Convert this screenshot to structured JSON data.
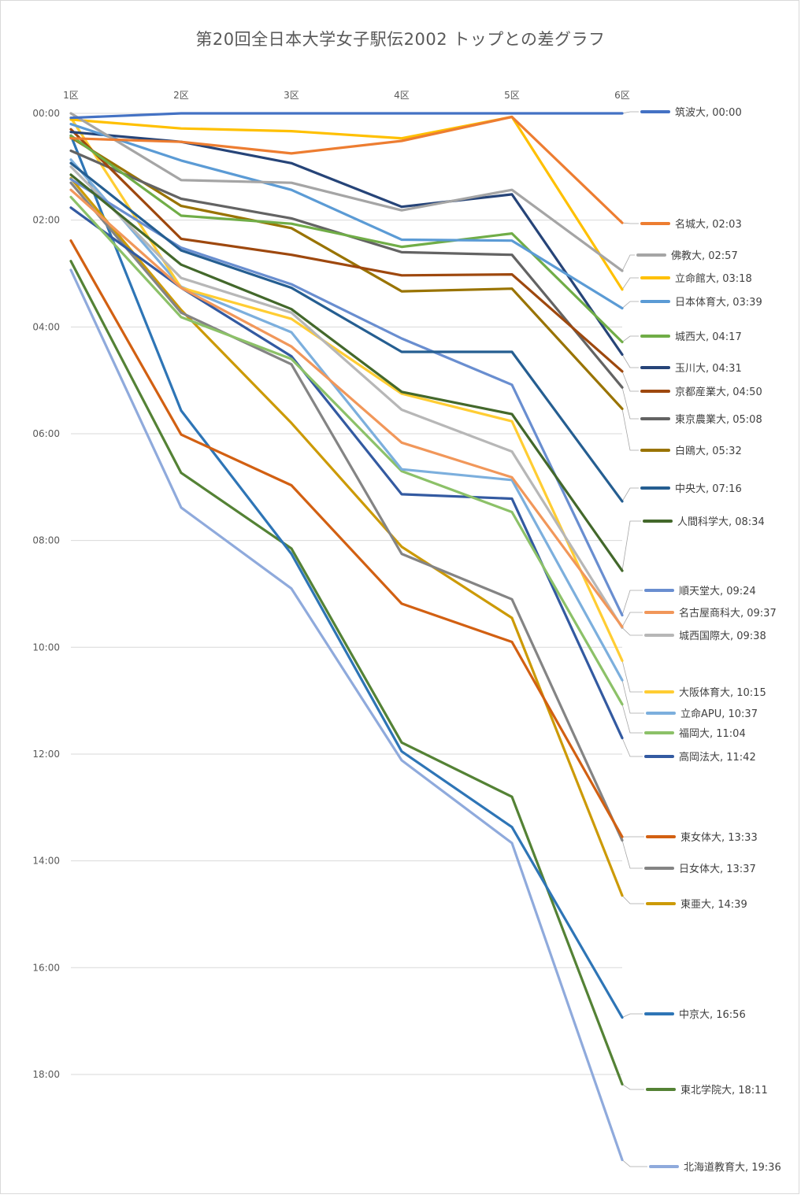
{
  "chart_data": {
    "type": "line",
    "title": "第20回全日本大学女子駅伝2002 トップとの差グラフ",
    "xlabel": "",
    "ylabel": "",
    "categories": [
      "1区",
      "2区",
      "3区",
      "4区",
      "5区",
      "6区"
    ],
    "y_axis": {
      "unit": "seconds behind leader",
      "inverted": true,
      "range_seconds": [
        0,
        1200
      ],
      "tick_labels": [
        "00:00",
        "02:00",
        "04:00",
        "06:00",
        "08:00",
        "10:00",
        "12:00",
        "14:00",
        "16:00",
        "18:00"
      ],
      "tick_values_seconds": [
        0,
        120,
        240,
        360,
        480,
        600,
        720,
        840,
        960,
        1080
      ]
    },
    "grid": true,
    "legend_position": "right, labels at line ends",
    "series": [
      {
        "name": "筑波大",
        "label": "筑波大, 00:00",
        "color": "#4472C4",
        "values": [
          5,
          0,
          0,
          0,
          0,
          0
        ]
      },
      {
        "name": "名城大",
        "label": "名城大, 02:03",
        "color": "#ED7D31",
        "values": [
          28,
          32,
          45,
          31,
          4,
          123
        ]
      },
      {
        "name": "佛教大",
        "label": "佛教大, 02:57",
        "color": "#A5A5A5",
        "values": [
          0,
          75,
          78,
          109,
          86,
          177
        ]
      },
      {
        "name": "立命館大",
        "label": "立命館大, 03:18",
        "color": "#FFC000",
        "values": [
          7,
          17,
          20,
          28,
          4,
          198
        ]
      },
      {
        "name": "日本体育大",
        "label": "日本体育大, 03:39",
        "color": "#5B9BD5",
        "values": [
          12,
          53,
          86,
          142,
          143,
          219
        ]
      },
      {
        "name": "城西大",
        "label": "城西大, 04:17",
        "color": "#70AD47",
        "values": [
          25,
          115,
          124,
          150,
          135,
          257
        ]
      },
      {
        "name": "玉川大",
        "label": "玉川大, 04:31",
        "color": "#264478",
        "values": [
          21,
          32,
          56,
          105,
          91,
          271
        ]
      },
      {
        "name": "京都産業大",
        "label": "京都産業大, 04:50",
        "color": "#9E480E",
        "values": [
          18,
          141,
          159,
          182,
          181,
          290
        ]
      },
      {
        "name": "東京農業大",
        "label": "東京農業大, 05:08",
        "color": "#636363",
        "values": [
          42,
          96,
          118,
          156,
          159,
          308
        ]
      },
      {
        "name": "白鴎大",
        "label": "白鴎大, 05:32",
        "color": "#997300",
        "values": [
          27,
          104,
          129,
          200,
          197,
          332
        ]
      },
      {
        "name": "中央大",
        "label": "中央大, 07:16",
        "color": "#255E91",
        "values": [
          56,
          154,
          196,
          268,
          268,
          436
        ]
      },
      {
        "name": "人間科学大",
        "label": "人間科学大, 08:34",
        "color": "#43682B",
        "values": [
          69,
          170,
          220,
          313,
          338,
          514
        ]
      },
      {
        "name": "順天堂大",
        "label": "順天堂大, 09:24",
        "color": "#698ED0",
        "values": [
          74,
          151,
          192,
          253,
          305,
          564
        ]
      },
      {
        "name": "名古屋商科大",
        "label": "名古屋商科大, 09:37",
        "color": "#F1975A",
        "values": [
          86,
          196,
          262,
          370,
          409,
          577
        ]
      },
      {
        "name": "城西国際大",
        "label": "城西国際大, 09:38",
        "color": "#B7B7B7",
        "values": [
          60,
          185,
          224,
          333,
          380,
          578
        ]
      },
      {
        "name": "大阪体育大",
        "label": "大阪体育大, 10:15",
        "color": "#FFCD33",
        "values": [
          5,
          196,
          231,
          315,
          346,
          615
        ]
      },
      {
        "name": "立命APU",
        "label": "立命APU, 10:37",
        "color": "#7CAFDD",
        "values": [
          52,
          195,
          246,
          400,
          412,
          637
        ]
      },
      {
        "name": "福岡大",
        "label": "福岡大, 11:04",
        "color": "#8CC168",
        "values": [
          94,
          229,
          276,
          402,
          448,
          664
        ]
      },
      {
        "name": "高岡法大",
        "label": "高岡法大, 11:42",
        "color": "#335AA1",
        "values": [
          106,
          196,
          273,
          428,
          433,
          702
        ]
      },
      {
        "name": "東女体大",
        "label": "東女体大, 13:33",
        "color": "#D26012",
        "values": [
          143,
          361,
          418,
          551,
          594,
          813
        ]
      },
      {
        "name": "日女体大",
        "label": "日女体大, 13:37",
        "color": "#848484",
        "values": [
          78,
          224,
          282,
          495,
          546,
          817
        ]
      },
      {
        "name": "東亜大",
        "label": "東亜大, 14:39",
        "color": "#CC9A06",
        "values": [
          73,
          221,
          348,
          487,
          567,
          879
        ]
      },
      {
        "name": "中京大",
        "label": "中京大, 16:56",
        "color": "#2E75B6",
        "values": [
          25,
          334,
          495,
          717,
          802,
          1016
        ]
      },
      {
        "name": "東北学院大",
        "label": "東北学院大, 18:11",
        "color": "#548235",
        "values": [
          166,
          404,
          489,
          707,
          768,
          1091
        ]
      },
      {
        "name": "北海道教育大",
        "label": "北海道教育大, 19:36",
        "color": "#8FAADC",
        "values": [
          176,
          443,
          534,
          727,
          820,
          1176
        ]
      }
    ]
  }
}
